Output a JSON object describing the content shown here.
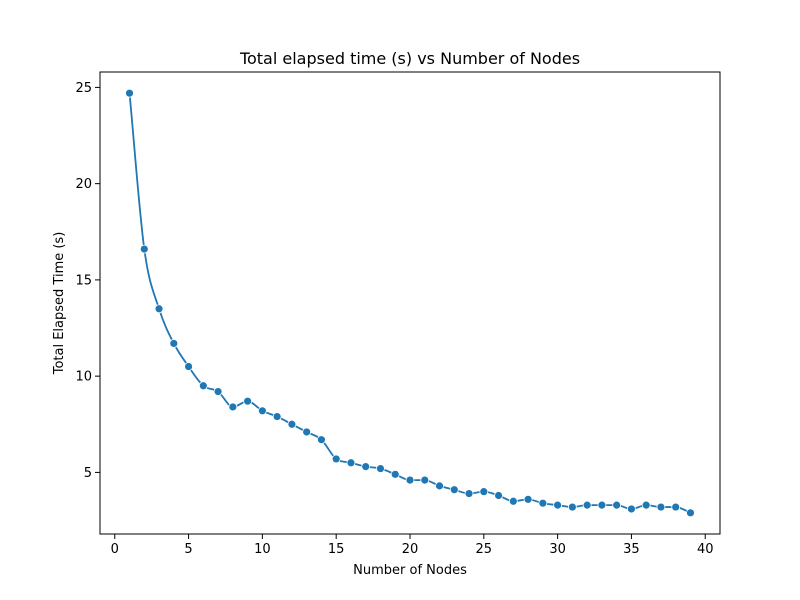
{
  "chart_data": {
    "type": "line",
    "title": "Total elapsed time (s) vs Number of Nodes",
    "xlabel": "Number of Nodes",
    "ylabel": "Total Elapsed Time (s)",
    "xlim": [
      -1,
      41
    ],
    "ylim": [
      1.8,
      25.8
    ],
    "xticks": [
      0,
      5,
      10,
      15,
      20,
      25,
      30,
      35,
      40
    ],
    "yticks": [
      5,
      10,
      15,
      20,
      25
    ],
    "grid": false,
    "legend": "none",
    "series": [
      {
        "color": "#1f77b4",
        "marker": "circle",
        "x": [
          1,
          2,
          3,
          4,
          5,
          6,
          7,
          8,
          9,
          10,
          11,
          12,
          13,
          14,
          15,
          16,
          17,
          18,
          19,
          20,
          21,
          22,
          23,
          24,
          25,
          26,
          27,
          28,
          29,
          30,
          31,
          32,
          33,
          34,
          35,
          36,
          37,
          38,
          39
        ],
        "y": [
          24.7,
          16.6,
          13.5,
          11.7,
          10.5,
          9.5,
          9.2,
          8.4,
          8.7,
          8.2,
          7.9,
          7.5,
          7.1,
          6.7,
          5.7,
          5.5,
          5.3,
          5.2,
          4.9,
          4.6,
          4.6,
          4.3,
          4.1,
          3.9,
          4.0,
          3.8,
          3.5,
          3.6,
          3.4,
          3.3,
          3.2,
          3.3,
          3.3,
          3.3,
          3.1,
          3.3,
          3.2,
          3.2,
          2.9
        ]
      }
    ]
  }
}
